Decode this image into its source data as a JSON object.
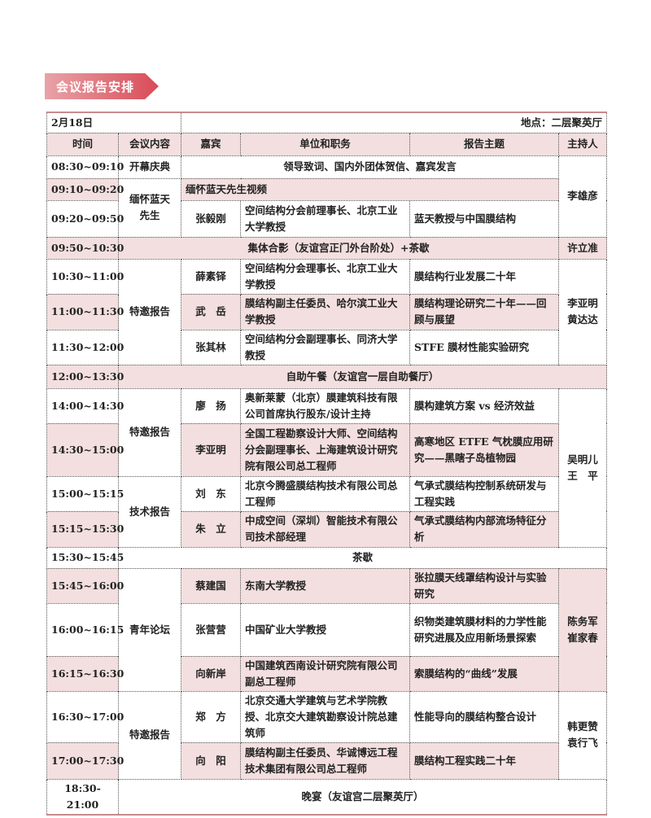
{
  "section_title": "会议报告安排",
  "date": "2月18日",
  "location": "地点：二层聚英厅",
  "columns": [
    "时间",
    "会议内容",
    "嘉宾",
    "单位和职务",
    "报告主题",
    "主持人"
  ],
  "rows": [
    {
      "time": "08:30~09:10",
      "session": "开幕庆典",
      "span": "领导致词、国内外团体贺信、嘉宾发言",
      "host": [
        "李雄彦"
      ]
    },
    {
      "time": "09:10~09:20",
      "session": "缅怀蓝天先生",
      "span": "缅怀蓝天先生视频"
    },
    {
      "time": "09:20~09:50",
      "guest": "张毅刚",
      "unit": "空间结构分会前理事长、北京工业大学教授",
      "topic": "蓝天教授与中国膜结构"
    },
    {
      "time": "09:50~10:30",
      "span": "集体合影（友谊宫正门外台阶处）+茶歇",
      "host": [
        "许立准"
      ]
    },
    {
      "time": "10:30~11:00",
      "session": "特邀报告",
      "guest": "薛素铎",
      "unit": "空间结构分会理事长、北京工业大学教授",
      "topic": "膜结构行业发展二十年",
      "host": [
        "李亚明",
        "黄达达"
      ]
    },
    {
      "time": "11:00~11:30",
      "guest": "武　岳",
      "unit": "膜结构副主任委员、哈尔滨工业大学教授",
      "topic": "膜结构理论研究二十年——回顾与展望"
    },
    {
      "time": "11:30~12:00",
      "guest": "张其林",
      "unit": "空间结构分会副理事长、同济大学教授",
      "topic": "STFE 膜材性能实验研究"
    },
    {
      "time": "12:00~13:30",
      "span": "自助午餐（友谊宫一层自助餐厅）"
    },
    {
      "time": "14:00~14:30",
      "session": "特邀报告",
      "guest": "廖　扬",
      "unit": "奥新莱蒙（北京）膜建筑科技有限公司首席执行股东/设计主持",
      "topic": "膜构建筑方案 vs 经济效益",
      "host": [
        "吴明儿",
        "王　平"
      ]
    },
    {
      "time": "14:30~15:00",
      "guest": "李亚明",
      "unit": "全国工程勘察设计大师、空间结构分会副理事长、上海建筑设计研究院有限公司总工程师",
      "topic": "高寒地区 ETFE 气枕膜应用研究——黑瞎子岛植物园"
    },
    {
      "time": "15:00~15:15",
      "session": "技术报告",
      "guest": "刘　东",
      "unit": "北京今腾盛膜结构技术有限公司总工程师",
      "topic": "气承式膜结构控制系统研发与工程实践"
    },
    {
      "time": "15:15~15:30",
      "guest": "朱　立",
      "unit": "中成空间（深圳）智能技术有限公司技术部经理",
      "topic": "气承式膜结构内部流场特征分析"
    },
    {
      "time": "15:30~15:45",
      "span": "茶歇"
    },
    {
      "time": "15:45~16:00",
      "session": "青年论坛",
      "guest": "蔡建国",
      "unit": "东南大学教授",
      "topic": "张拉膜天线罩结构设计与实验研究",
      "host": [
        "陈务军",
        "崔家春"
      ]
    },
    {
      "time": "16:00~16:15",
      "guest": "张营营",
      "unit": "中国矿业大学教授",
      "topic": "织物类建筑膜材料的力学性能研究进展及应用新场景探索"
    },
    {
      "time": "16:15~16:30",
      "guest": "向新岸",
      "unit": "中国建筑西南设计研究院有限公司副总工程师",
      "topic": "索膜结构的“曲线”发展"
    },
    {
      "time": "16:30~17:00",
      "session": "特邀报告",
      "guest": "郑　方",
      "unit": "北京交通大学建筑与艺术学院教授、北京交大建筑勘察设计院总建筑师",
      "topic": "性能导向的膜结构整合设计",
      "host": [
        "韩更赞",
        "袁行飞"
      ]
    },
    {
      "time": "17:00~17:30",
      "guest": "向　阳",
      "unit": "膜结构副主任委员、华诚博远工程技术集团有限公司总工程师",
      "topic": "膜结构工程实践二十年"
    },
    {
      "time": "18:30-21:00",
      "span": "晚宴（友谊宫二层聚英厅）"
    }
  ],
  "colors": {
    "banner": "#d94b57",
    "row_tint": "#f3dfdf",
    "rule": "#c98a8f"
  }
}
